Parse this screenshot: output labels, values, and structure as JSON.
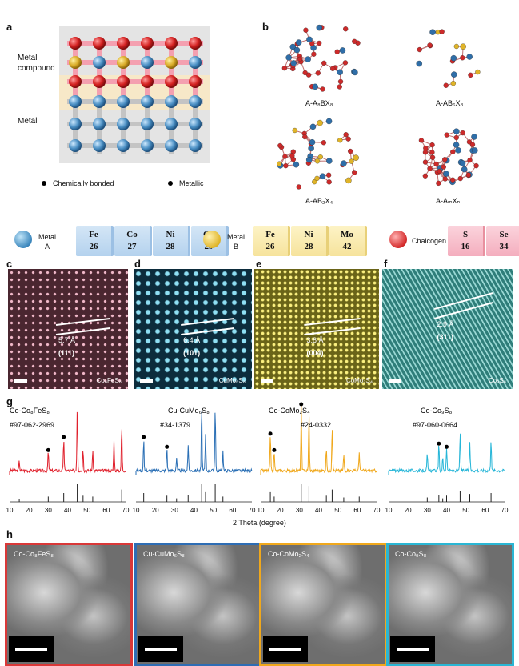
{
  "panels": {
    "a": "a",
    "b": "b",
    "c": "c",
    "d": "d",
    "e": "e",
    "f": "f",
    "g": "g",
    "h": "h"
  },
  "panel_a": {
    "metal_compound_label": "Metal\ncompound",
    "metal_label": "Metal",
    "legend_bonded": "Chemically bonded",
    "legend_metallic": "Metallic"
  },
  "panel_b": {
    "structures": [
      "A-A₈BX₈",
      "A-AB₆X₈",
      "A-AB₂X₄",
      "A-AₘXₙ"
    ]
  },
  "legend_row": {
    "metal_a": "Metal\nA",
    "metal_b": "Metal\nB",
    "chalcogen": "Chalcogen",
    "metal_a_tiles": [
      {
        "sym": "Fe",
        "num": "26"
      },
      {
        "sym": "Co",
        "num": "27"
      },
      {
        "sym": "Ni",
        "num": "28"
      },
      {
        "sym": "Cu",
        "num": "29"
      }
    ],
    "metal_b_tiles": [
      {
        "sym": "Fe",
        "num": "26"
      },
      {
        "sym": "Ni",
        "num": "28"
      },
      {
        "sym": "Mo",
        "num": "42"
      }
    ],
    "chalcogen_tiles": [
      {
        "sym": "S",
        "num": "16"
      },
      {
        "sym": "Se",
        "num": "34"
      }
    ]
  },
  "tem": [
    {
      "spacing": "5.7 Å",
      "plane": "(111)",
      "material": "Co₈FeS₈",
      "color": "#b8425a"
    },
    {
      "spacing": "6.4 Å",
      "plane": "(101)",
      "material": "CuMo₆S₈",
      "color": "#2e8db0"
    },
    {
      "spacing": "3.8 Å",
      "plane": "(004)",
      "material": "CoMo₂S₄",
      "color": "#9aa030"
    },
    {
      "spacing": "2.9 Å",
      "plane": "(311)",
      "material": "Co₉S₈",
      "color": "#3ca7a2"
    }
  ],
  "xrd": {
    "xlabel": "2 Theta (degree)",
    "ticks": [
      "10",
      "20",
      "30",
      "40",
      "50",
      "60",
      "70"
    ],
    "patterns": [
      {
        "name": "Co-Co₈FeS₈",
        "ref": "#97-062-2969",
        "color": "#e0202c"
      },
      {
        "name": "Cu-CuMo₆S₈",
        "ref": "#34-1379",
        "color": "#2a6fb5"
      },
      {
        "name": "Co-CoMo₂S₄",
        "ref": "#24-0332",
        "color": "#f0a81c"
      },
      {
        "name": "Co-Co₉S₈",
        "ref": "#97-060-0664",
        "color": "#27b6d8"
      }
    ]
  },
  "sem": [
    {
      "label": "Co-Co₈FeS₈",
      "border": "#d93838"
    },
    {
      "label": "Cu-CuMo₆S₈",
      "border": "#2e6db4"
    },
    {
      "label": "Co-CoMo₂S₄",
      "border": "#f0a81c"
    },
    {
      "label": "Co-Co₉S₈",
      "border": "#2ab6d4"
    }
  ]
}
